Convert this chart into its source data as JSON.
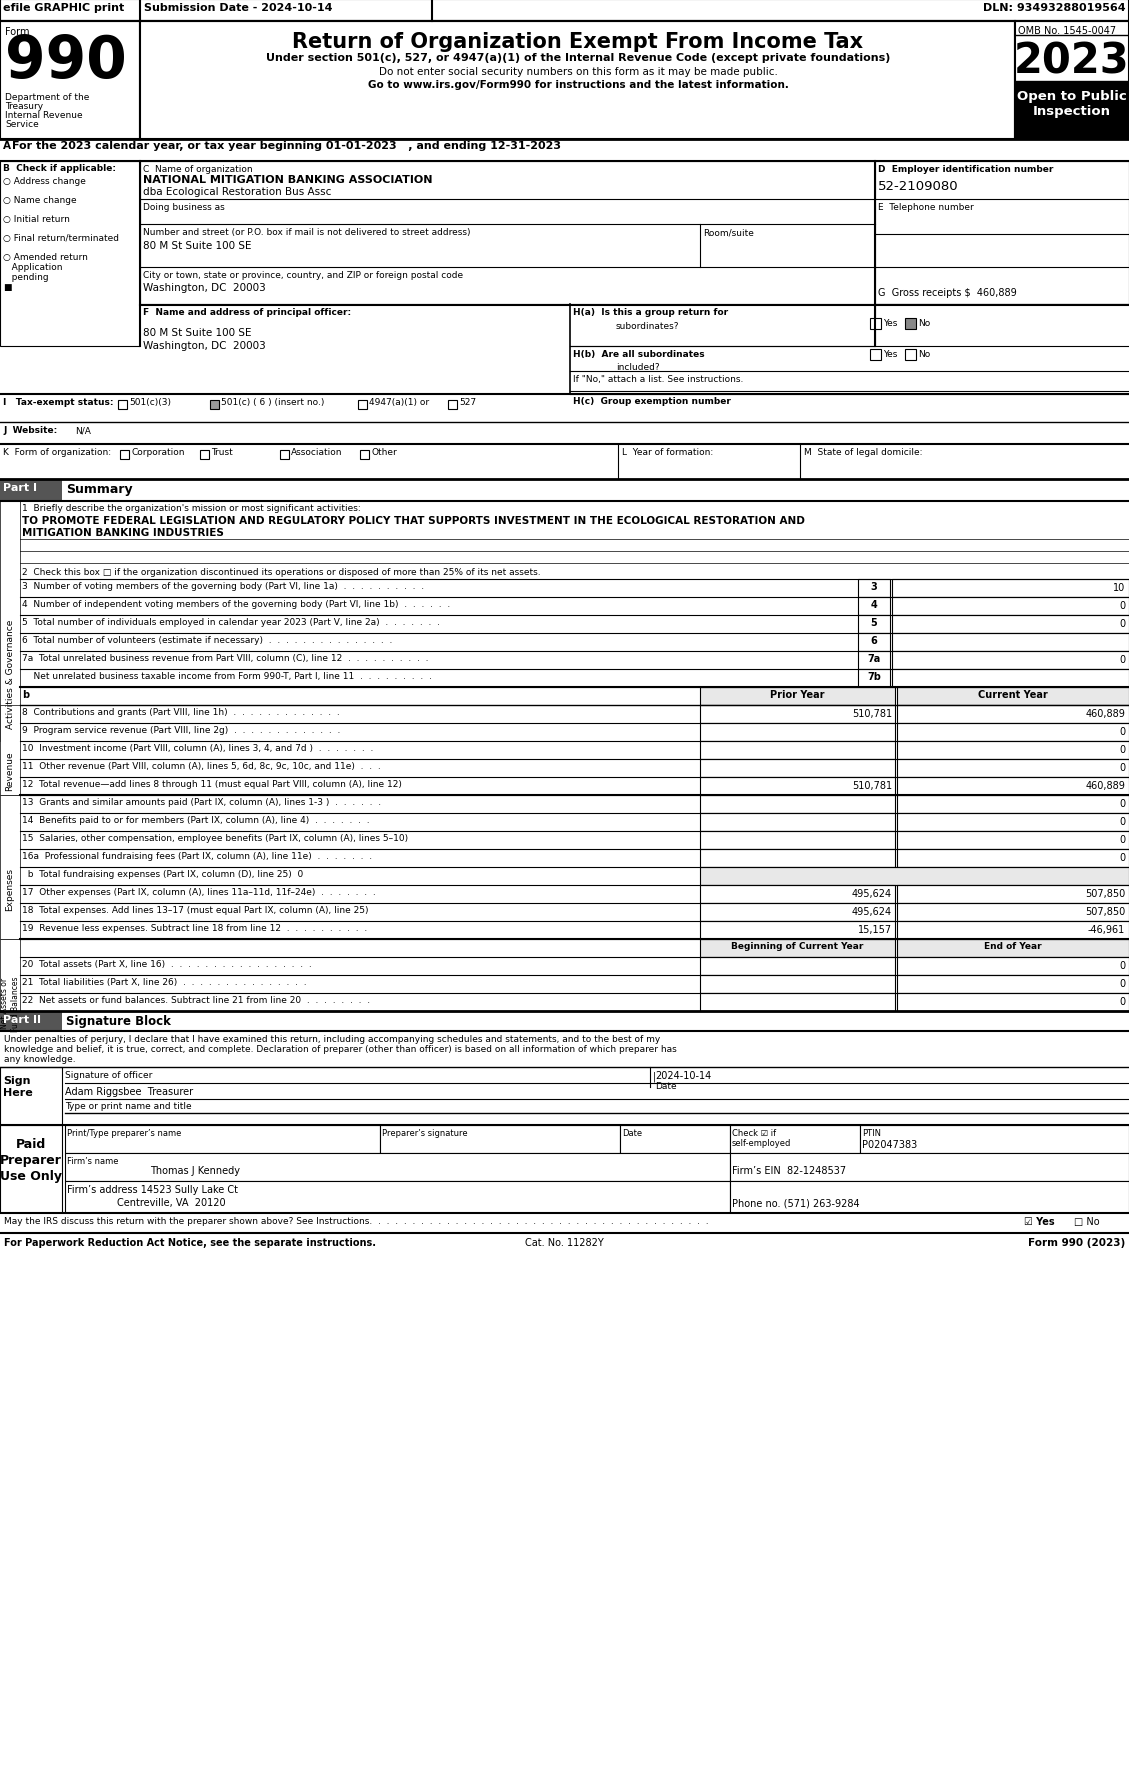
{
  "title_main": "Return of Organization Exempt From Income Tax",
  "subtitle1": "Under section 501(c), 527, or 4947(a)(1) of the Internal Revenue Code (except private foundations)",
  "subtitle2": "Do not enter social security numbers on this form as it may be made public.",
  "subtitle3": "Go to www.irs.gov/Form990 for instructions and the latest information.",
  "efile_text": "efile GRAPHIC print",
  "submission_date": "Submission Date - 2024-10-14",
  "dln": "DLN: 93493288019564",
  "omb": "OMB No. 1545-0047",
  "year": "2023",
  "open_text": "Open to Public\nInspection",
  "form_number": "990",
  "dept1": "Department of the",
  "dept2": "Treasury",
  "dept3": "Internal Revenue",
  "dept4": "Service",
  "tax_year_line": "For the 2023 calendar year, or tax year beginning 01-01-2023   , and ending 12-31-2023",
  "b_check": "B  Check if applicable:",
  "checkboxes_b": [
    "Address change",
    "Name change",
    "Initial return",
    "Final return/terminated",
    "Amended return",
    "Application",
    "pending"
  ],
  "c_label": "C  Name of organization",
  "org_name": "NATIONAL MITIGATION BANKING ASSOCIATION",
  "org_dba": "dba Ecological Restoration Bus Assc",
  "doing_business_as": "Doing business as",
  "street_label": "Number and street (or P.O. box if mail is not delivered to street address)",
  "room_label": "Room/suite",
  "street_addr": "80 M St Suite 100 SE",
  "city_label": "City or town, state or province, country, and ZIP or foreign postal code",
  "city_addr": "Washington, DC  20003",
  "d_label": "D  Employer identification number",
  "ein": "52-2109080",
  "e_label": "E  Telephone number",
  "g_label": "G  Gross receipts $  460,889",
  "f_label": "F  Name and address of principal officer:",
  "principal_addr1": "80 M St Suite 100 SE",
  "principal_addr2": "Washington, DC  20003",
  "ha_label": "H(a)  Is this a group return for",
  "ha_text": "subordinates?",
  "hb_label": "H(b)  Are all subordinates",
  "hb_text": "included?",
  "hc_label": "H(c)  Group exemption number",
  "ifno_text": "If \"No,\" attach a list. See instructions.",
  "i_label": "I   Tax-exempt status:",
  "tax_501c3": "501(c)(3)",
  "tax_501c6": "501(c) ( 6 ) (insert no.)",
  "tax_4947": "4947(a)(1) or",
  "tax_527": "527",
  "j_label": "J  Website:",
  "website": "N/A",
  "k_label": "K  Form of organization:",
  "k_options": [
    "Corporation",
    "Trust",
    "Association",
    "Other"
  ],
  "l_label": "L  Year of formation:",
  "m_label": "M  State of legal domicile:",
  "part1_label": "Part I",
  "part1_title": "Summary",
  "line1_label": "1  Briefly describe the organization's mission or most significant activities:",
  "mission1": "TO PROMOTE FEDERAL LEGISLATION AND REGULATORY POLICY THAT SUPPORTS INVESTMENT IN THE ECOLOGICAL RESTORATION AND",
  "mission2": "MITIGATION BANKING INDUSTRIES",
  "line2": "2  Check this box □ if the organization discontinued its operations or disposed of more than 25% of its net assets.",
  "line3": "3  Number of voting members of the governing body (Part VI, line 1a)  .  .  .  .  .  .  .  .  .  .",
  "line3_num": "3",
  "line3_val": "10",
  "line4": "4  Number of independent voting members of the governing body (Part VI, line 1b)  .  .  .  .  .  .",
  "line4_num": "4",
  "line4_val": "0",
  "line5": "5  Total number of individuals employed in calendar year 2023 (Part V, line 2a)  .  .  .  .  .  .  .",
  "line5_num": "5",
  "line5_val": "0",
  "line6": "6  Total number of volunteers (estimate if necessary)  .  .  .  .  .  .  .  .  .  .  .  .  .  .  .",
  "line6_num": "6",
  "line6_val": "",
  "line7a": "7a  Total unrelated business revenue from Part VIII, column (C), line 12  .  .  .  .  .  .  .  .  .  .",
  "line7a_num": "7a",
  "line7a_val": "0",
  "line7b": "    Net unrelated business taxable income from Form 990-T, Part I, line 11  .  .  .  .  .  .  .  .  .",
  "line7b_num": "7b",
  "line7b_val": "",
  "prior_year_label": "Prior Year",
  "current_year_label": "Current Year",
  "line8": "8  Contributions and grants (Part VIII, line 1h)  .  .  .  .  .  .  .  .  .  .  .  .  .",
  "line8_prior": "510,781",
  "line8_current": "460,889",
  "line9": "9  Program service revenue (Part VIII, line 2g)  .  .  .  .  .  .  .  .  .  .  .  .  .",
  "line9_prior": "",
  "line9_current": "0",
  "line10": "10  Investment income (Part VIII, column (A), lines 3, 4, and 7d )  .  .  .  .  .  .  .",
  "line10_prior": "",
  "line10_current": "0",
  "line11": "11  Other revenue (Part VIII, column (A), lines 5, 6d, 8c, 9c, 10c, and 11e)  .  .  .",
  "line11_prior": "",
  "line11_current": "0",
  "line12": "12  Total revenue—add lines 8 through 11 (must equal Part VIII, column (A), line 12)",
  "line12_prior": "510,781",
  "line12_current": "460,889",
  "line13": "13  Grants and similar amounts paid (Part IX, column (A), lines 1-3 )  .  .  .  .  .  .",
  "line13_prior": "",
  "line13_current": "0",
  "line14": "14  Benefits paid to or for members (Part IX, column (A), line 4)  .  .  .  .  .  .  .",
  "line14_prior": "",
  "line14_current": "0",
  "line15": "15  Salaries, other compensation, employee benefits (Part IX, column (A), lines 5–10)",
  "line15_prior": "",
  "line15_current": "0",
  "line16a": "16a  Professional fundraising fees (Part IX, column (A), line 11e)  .  .  .  .  .  .  .",
  "line16a_prior": "",
  "line16a_current": "0",
  "line16b": "  b  Total fundraising expenses (Part IX, column (D), line 25)  0",
  "line17": "17  Other expenses (Part IX, column (A), lines 11a–11d, 11f–24e)  .  .  .  .  .  .  .",
  "line17_prior": "495,624",
  "line17_current": "507,850",
  "line18": "18  Total expenses. Add lines 13–17 (must equal Part IX, column (A), line 25)",
  "line18_prior": "495,624",
  "line18_current": "507,850",
  "line19": "19  Revenue less expenses. Subtract line 18 from line 12  .  .  .  .  .  .  .  .  .  .",
  "line19_prior": "15,157",
  "line19_current": "-46,961",
  "beg_year_label": "Beginning of Current Year",
  "end_year_label": "End of Year",
  "line20": "20  Total assets (Part X, line 16)  .  .  .  .  .  .  .  .  .  .  .  .  .  .  .  .  .",
  "line20_beg": "",
  "line20_end": "0",
  "line21": "21  Total liabilities (Part X, line 26)  .  .  .  .  .  .  .  .  .  .  .  .  .  .  .",
  "line21_beg": "",
  "line21_end": "0",
  "line22": "22  Net assets or fund balances. Subtract line 21 from line 20  .  .  .  .  .  .  .  .",
  "line22_beg": "",
  "line22_end": "0",
  "part2_title": "Signature Block",
  "sig_text1": "Under penalties of perjury, I declare that I have examined this return, including accompanying schedules and statements, and to the best of my",
  "sig_text2": "knowledge and belief, it is true, correct, and complete. Declaration of preparer (other than officer) is based on all information of which preparer has",
  "sig_text3": "any knowledge.",
  "sig_officer_label": "Signature of officer",
  "sig_date_val": "2024-10-14",
  "sig_date_label": "Date",
  "sig_name": "Adam Riggsbee  Treasurer",
  "type_label": "Type or print name and title",
  "print_name_label": "Print/Type preparer’s name",
  "preparer_sig_label": "Preparer’s signature",
  "date_label": "Date",
  "check_label": "Check ☑ if\nself-employed",
  "ptin_label": "PTIN",
  "ptin_val": "P02047383",
  "firms_name_label": "Firm’s name",
  "firm_name": "Thomas J Kennedy",
  "firms_ein_label": "Firm’s EIN",
  "firm_ein": "82-1248537",
  "firms_addr_label": "Firm’s address",
  "firm_addr1": "14523 Sully Lake Ct",
  "firm_addr2": "Centreville, VA  20120",
  "phone_label": "Phone no. (571) 263-9284",
  "bottom_text": "May the IRS discuss this return with the preparer shown above? See Instructions.  .  .  .  .  .  .  .  .  .  .  .  .  .  .  .  .  .  .  .  .  .  .  .  .  .  .  .  .  .  .  .  .  .  .  .  .  .  .  .",
  "bottom_yes_text": "☑ Yes",
  "bottom_no_text": "□ No",
  "paperwork_text": "For Paperwork Reduction Act Notice, see the separate instructions.",
  "cat_no": "Cat. No. 11282Y",
  "form_bottom": "Form 990 (2023)",
  "bg_color": "#ffffff",
  "header_bg": "#000000",
  "gray_bg": "#cccccc",
  "dark_gray": "#555555",
  "light_gray": "#e8e8e8"
}
